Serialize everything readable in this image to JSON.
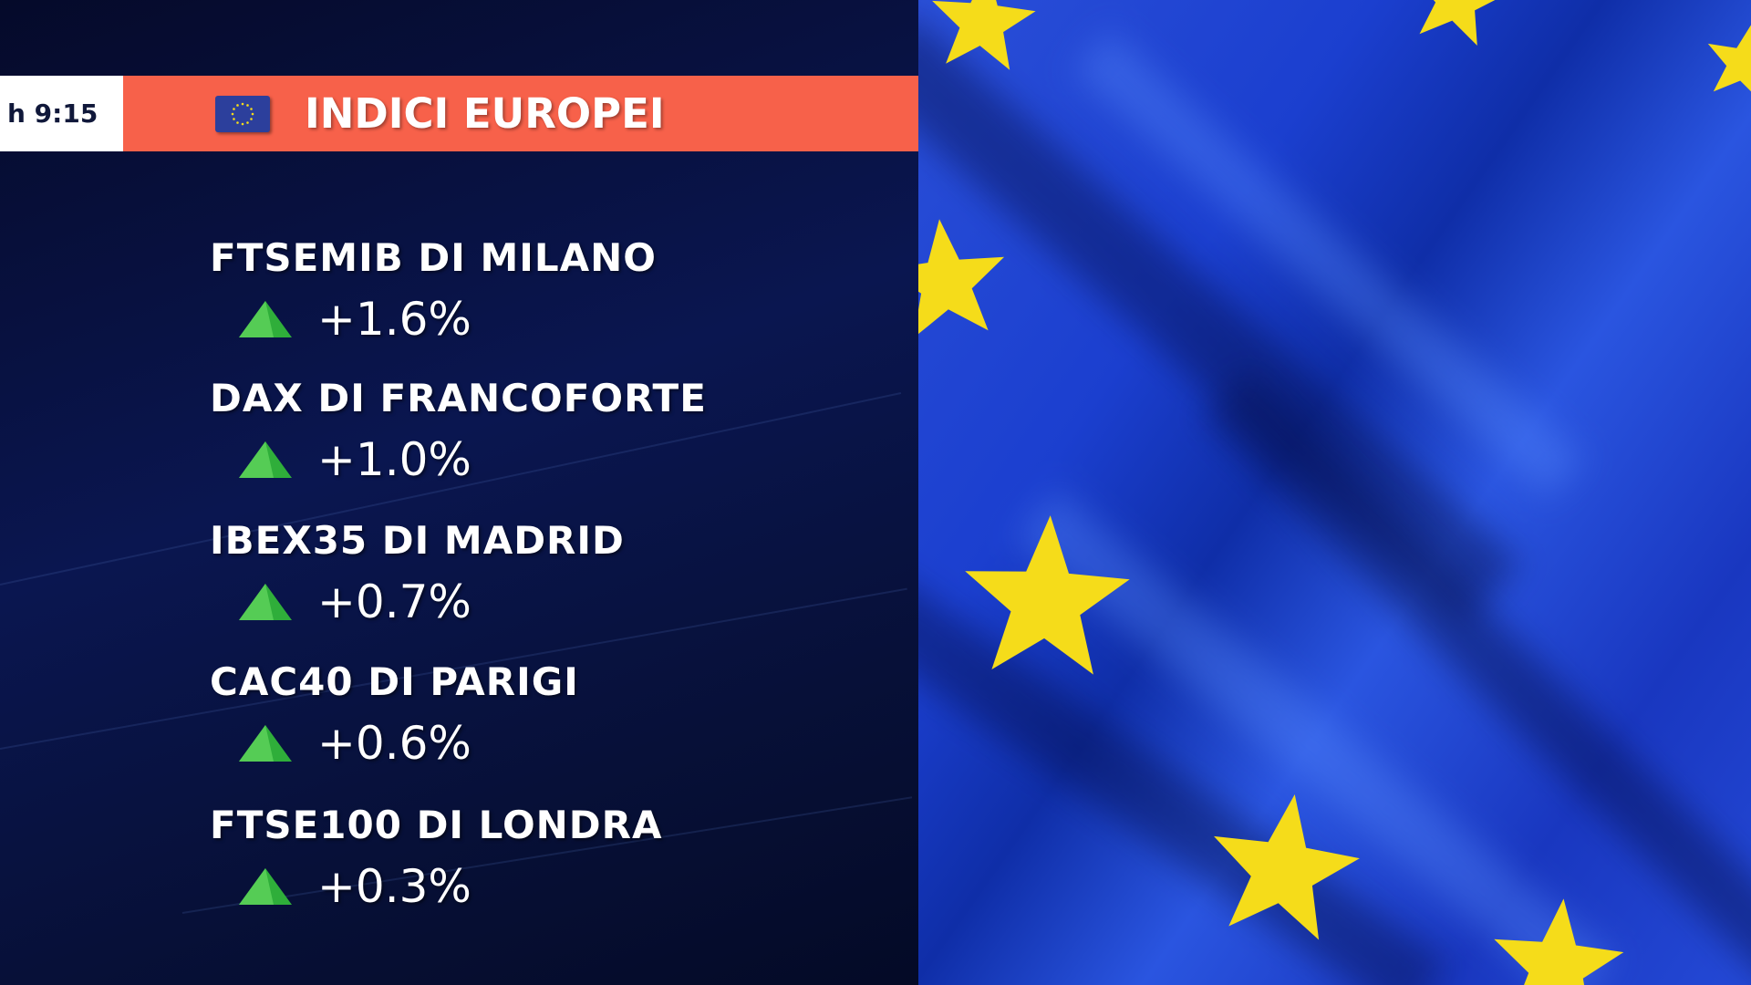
{
  "header": {
    "time": "h 9:15",
    "title": "INDICI EUROPEI",
    "flag_icon": "eu-flag-icon"
  },
  "indices": [
    {
      "name": "FTSEMIB DI MILANO",
      "change": "+1.6%",
      "direction": "up"
    },
    {
      "name": "DAX DI FRANCOFORTE",
      "change": "+1.0%",
      "direction": "up"
    },
    {
      "name": "IBEX35 DI MADRID",
      "change": "+0.7%",
      "direction": "up"
    },
    {
      "name": "CAC40 DI PARIGI",
      "change": "+0.6%",
      "direction": "up"
    },
    {
      "name": "FTSE100 DI LONDRA",
      "change": "+0.3%",
      "direction": "up"
    }
  ],
  "colors": {
    "banner": "#f7614a",
    "up": "#2fae3a",
    "flag_blue": "#1f44d0",
    "star": "#f5dc1a"
  }
}
